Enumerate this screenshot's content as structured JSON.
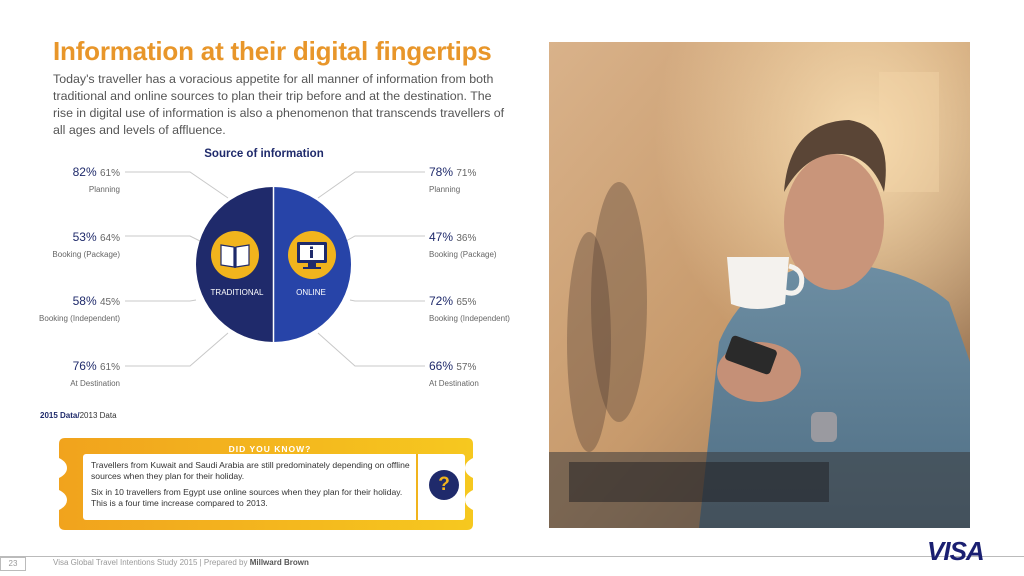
{
  "title": "Information at their digital fingertips",
  "intro": "Today's traveller has a voracious appetite for all manner of information from both traditional and online sources to plan their trip before and at the destination. The rise in digital use of information is also a phenomenon that transcends travellers of all ages and levels of affluence.",
  "source_title": "Source of information",
  "circle": {
    "left_label": "TRADITIONAL",
    "right_label": "ONLINE",
    "left_color": "#1f2a6b",
    "right_color": "#2744a8",
    "icon_bg": "#f1b41d"
  },
  "traditional": [
    {
      "v2015": "82%",
      "v2013": "61%",
      "label": "Planning"
    },
    {
      "v2015": "53%",
      "v2013": "64%",
      "label": "Booking (Package)"
    },
    {
      "v2015": "58%",
      "v2013": "45%",
      "label": "Booking (Independent)"
    },
    {
      "v2015": "76%",
      "v2013": "61%",
      "label": "At Destination"
    }
  ],
  "online": [
    {
      "v2015": "78%",
      "v2013": "71%",
      "label": "Planning"
    },
    {
      "v2015": "47%",
      "v2013": "36%",
      "label": "Booking (Package)"
    },
    {
      "v2015": "72%",
      "v2013": "65%",
      "label": "Booking (Independent)"
    },
    {
      "v2015": "66%",
      "v2013": "57%",
      "label": "At Destination"
    }
  ],
  "legend": {
    "a": "2015 Data/",
    "b": "2013 Data"
  },
  "did_you_know": {
    "heading": "DID YOU KNOW?",
    "p1": "Travellers from Kuwait and Saudi Arabia are still predominately depending on offline sources when they plan for their holiday.",
    "p2": "Six in 10 travellers from Egypt use online sources when they plan for their holiday. This is a four time increase compared to 2013.",
    "qmark": "?"
  },
  "footer": {
    "page": "23",
    "text": "Visa Global Travel Intentions Study 2015 | Prepared by ",
    "brand": "Millward Brown"
  },
  "logo": "VISA",
  "colors": {
    "accent": "#e8962a",
    "navy": "#1f2a6b",
    "gold": "#f1b41d"
  }
}
